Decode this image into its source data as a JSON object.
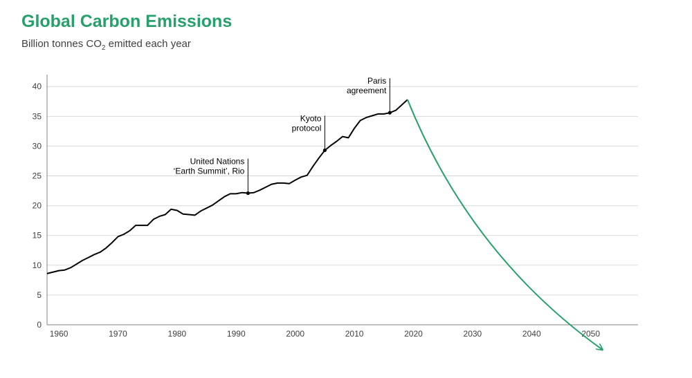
{
  "title": "Global Carbon Emissions",
  "subtitle": {
    "pre": "Billion tonnes CO",
    "sub": "2",
    "post": " emitted each year"
  },
  "colors": {
    "title": "#27a06b",
    "historical_line": "#000000",
    "projection_line": "#27a06b",
    "grid": "#d9d9d9",
    "axis": "#808080",
    "text": "#404040"
  },
  "chart_data": {
    "type": "line",
    "ylim": [
      0,
      42
    ],
    "xlim": [
      1958,
      2058
    ],
    "yticks": [
      0,
      5,
      10,
      15,
      20,
      25,
      30,
      35,
      40
    ],
    "xticks": [
      1960,
      1970,
      1980,
      1990,
      2000,
      2010,
      2020,
      2030,
      2040,
      2050
    ],
    "grid": "horizontal",
    "series": [
      {
        "style": "historical",
        "x": [
          1958,
          1960,
          1961,
          1962,
          1963,
          1964,
          1965,
          1966,
          1967,
          1968,
          1969,
          1970,
          1971,
          1972,
          1973,
          1974,
          1975,
          1976,
          1977,
          1978,
          1979,
          1980,
          1981,
          1982,
          1983,
          1984,
          1985,
          1986,
          1987,
          1988,
          1989,
          1990,
          1991,
          1992,
          1993,
          1994,
          1995,
          1996,
          1997,
          1998,
          1999,
          2000,
          2001,
          2002,
          2003,
          2004,
          2005,
          2006,
          2007,
          2008,
          2009,
          2010,
          2011,
          2012,
          2013,
          2014,
          2015,
          2016,
          2017,
          2018,
          2019
        ],
        "y": [
          8.6,
          9.1,
          9.2,
          9.6,
          10.2,
          10.8,
          11.3,
          11.8,
          12.2,
          12.9,
          13.8,
          14.8,
          15.2,
          15.8,
          16.7,
          16.7,
          16.7,
          17.7,
          18.2,
          18.5,
          19.4,
          19.2,
          18.6,
          18.5,
          18.4,
          19.1,
          19.6,
          20.1,
          20.8,
          21.5,
          22.0,
          22.0,
          22.2,
          22.1,
          22.2,
          22.6,
          23.1,
          23.6,
          23.8,
          23.8,
          23.7,
          24.3,
          24.8,
          25.1,
          26.6,
          28.0,
          29.3,
          30.1,
          30.8,
          31.6,
          31.4,
          33.0,
          34.3,
          34.8,
          35.1,
          35.4,
          35.4,
          35.6,
          36.0,
          36.9,
          37.8
        ]
      },
      {
        "style": "projection",
        "x": [
          2019,
          2052
        ],
        "y": [
          37.8,
          -4.2
        ]
      }
    ],
    "annotations": [
      {
        "lines": [
          "United Nations",
          "‘Earth Summit’,  Rio"
        ],
        "x": 1992,
        "y": 22.1
      },
      {
        "lines": [
          "Kyoto",
          "protocol"
        ],
        "x": 2005,
        "y": 29.3
      },
      {
        "lines": [
          "Paris",
          "agreement"
        ],
        "x": 2016,
        "y": 35.6
      }
    ]
  }
}
